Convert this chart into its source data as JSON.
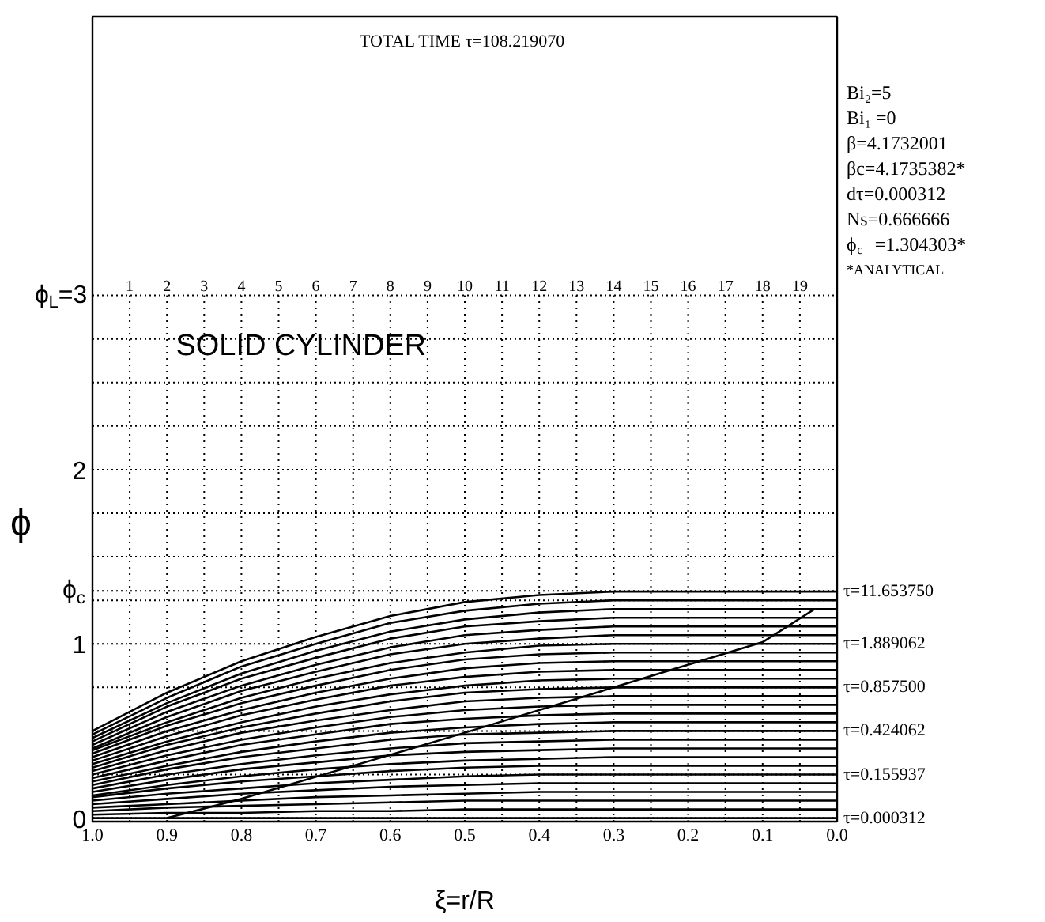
{
  "chart_data": {
    "type": "line",
    "title": "TOTAL TIME  τ=108.219070",
    "subtitle": "SOLID CYLINDER",
    "xlabel": "ξ=r/R",
    "ylabel": "ϕ",
    "x": [
      1.0,
      0.9,
      0.8,
      0.7,
      0.6,
      0.5,
      0.4,
      0.3,
      0.2,
      0.0
    ],
    "xlim": [
      1.0,
      0.0
    ],
    "ylim": [
      -0.02,
      4.6
    ],
    "xticks": [
      {
        "value": 1.0,
        "label": "1.0"
      },
      {
        "value": 0.95,
        "label": null
      },
      {
        "value": 0.9,
        "label": "0.9"
      },
      {
        "value": 0.85,
        "label": null
      },
      {
        "value": 0.8,
        "label": "0.8"
      },
      {
        "value": 0.75,
        "label": null
      },
      {
        "value": 0.7,
        "label": "0.7"
      },
      {
        "value": 0.65,
        "label": null
      },
      {
        "value": 0.6,
        "label": "0.6"
      },
      {
        "value": 0.55,
        "label": null
      },
      {
        "value": 0.5,
        "label": "0.5"
      },
      {
        "value": 0.45,
        "label": null
      },
      {
        "value": 0.4,
        "label": "0.4"
      },
      {
        "value": 0.35,
        "label": null
      },
      {
        "value": 0.3,
        "label": "0.3"
      },
      {
        "value": 0.25,
        "label": null
      },
      {
        "value": 0.2,
        "label": "0.2"
      },
      {
        "value": 0.15,
        "label": null
      },
      {
        "value": 0.1,
        "label": "0.1"
      },
      {
        "value": 0.05,
        "label": null
      },
      {
        "value": 0.0,
        "label": "0.0"
      }
    ],
    "yticks": [
      0,
      {
        "value": 0.25,
        "label": null
      },
      {
        "value": 0.5,
        "label": null
      },
      {
        "value": 0.75,
        "label": null
      },
      1,
      {
        "value": 1.25,
        "label": null
      },
      {
        "value": 1.304303,
        "label": "ϕ$_{c}$"
      },
      {
        "value": 1.5,
        "label": null
      },
      {
        "value": 1.75,
        "label": null
      },
      2,
      {
        "value": 2.25,
        "label": null
      },
      {
        "value": 2.5,
        "label": null
      },
      {
        "value": 2.75,
        "label": null
      },
      {
        "value": 3,
        "label": "ϕ$_{L}$=3"
      }
    ],
    "grid": true,
    "line_style": "solid",
    "marker": "none",
    "series": [
      {
        "color": "#000000",
        "name": "τ=0.000312",
        "values": [
          0,
          0,
          0,
          0,
          0,
          0,
          0,
          0,
          0,
          0
        ]
      },
      {
        "color": "#000000",
        "values": [
          0.02,
          0.03,
          0.03,
          0.04,
          0.04,
          0.05,
          0.05,
          0.05,
          0.05,
          0.05
        ]
      },
      {
        "color": "#000000",
        "values": [
          0.04,
          0.06,
          0.07,
          0.08,
          0.09,
          0.1,
          0.1,
          0.1,
          0.1,
          0.1
        ]
      },
      {
        "color": "#000000",
        "values": [
          0.06,
          0.08,
          0.1,
          0.12,
          0.13,
          0.14,
          0.15,
          0.15,
          0.15,
          0.15
        ]
      },
      {
        "color": "#000000",
        "values": [
          0.08,
          0.11,
          0.14,
          0.16,
          0.18,
          0.19,
          0.2,
          0.2,
          0.2,
          0.2
        ]
      },
      {
        "color": "#000000",
        "name": "τ=0.155937",
        "values": [
          0.1,
          0.14,
          0.17,
          0.2,
          0.22,
          0.24,
          0.25,
          0.25,
          0.25,
          0.25
        ]
      },
      {
        "color": "#000000",
        "values": [
          0.12,
          0.17,
          0.21,
          0.24,
          0.27,
          0.29,
          0.3,
          0.3,
          0.3,
          0.3
        ]
      },
      {
        "color": "#000000",
        "values": [
          0.13,
          0.19,
          0.24,
          0.28,
          0.31,
          0.33,
          0.34,
          0.35,
          0.35,
          0.35
        ]
      },
      {
        "color": "#000000",
        "values": [
          0.15,
          0.22,
          0.28,
          0.32,
          0.36,
          0.38,
          0.39,
          0.4,
          0.4,
          0.4
        ]
      },
      {
        "color": "#000000",
        "values": [
          0.17,
          0.25,
          0.31,
          0.36,
          0.4,
          0.43,
          0.44,
          0.45,
          0.45,
          0.45
        ]
      },
      {
        "color": "#000000",
        "name": "τ=0.424062",
        "values": [
          0.19,
          0.28,
          0.35,
          0.4,
          0.45,
          0.48,
          0.49,
          0.5,
          0.5,
          0.5
        ]
      },
      {
        "color": "#000000",
        "values": [
          0.21,
          0.3,
          0.38,
          0.44,
          0.49,
          0.52,
          0.54,
          0.55,
          0.55,
          0.55
        ]
      },
      {
        "color": "#000000",
        "values": [
          0.23,
          0.33,
          0.42,
          0.48,
          0.54,
          0.57,
          0.59,
          0.6,
          0.6,
          0.6
        ]
      },
      {
        "color": "#000000",
        "values": [
          0.25,
          0.36,
          0.45,
          0.52,
          0.58,
          0.62,
          0.64,
          0.65,
          0.65,
          0.65
        ]
      },
      {
        "color": "#000000",
        "values": [
          0.27,
          0.39,
          0.49,
          0.56,
          0.62,
          0.67,
          0.69,
          0.7,
          0.7,
          0.7
        ]
      },
      {
        "color": "#000000",
        "name": "τ=0.857500",
        "values": [
          0.29,
          0.42,
          0.52,
          0.6,
          0.67,
          0.72,
          0.74,
          0.75,
          0.75,
          0.75
        ]
      },
      {
        "color": "#000000",
        "values": [
          0.31,
          0.44,
          0.55,
          0.64,
          0.71,
          0.76,
          0.79,
          0.8,
          0.8,
          0.8
        ]
      },
      {
        "color": "#000000",
        "values": [
          0.33,
          0.47,
          0.59,
          0.68,
          0.76,
          0.81,
          0.84,
          0.85,
          0.85,
          0.85
        ]
      },
      {
        "color": "#000000",
        "values": [
          0.35,
          0.5,
          0.62,
          0.72,
          0.8,
          0.86,
          0.89,
          0.9,
          0.9,
          0.9
        ]
      },
      {
        "color": "#000000",
        "values": [
          0.37,
          0.53,
          0.66,
          0.76,
          0.85,
          0.91,
          0.94,
          0.95,
          0.95,
          0.95
        ]
      },
      {
        "color": "#000000",
        "name": "τ=1.889062",
        "values": [
          0.39,
          0.55,
          0.69,
          0.8,
          0.89,
          0.95,
          0.99,
          1.0,
          1.0,
          1.0
        ]
      },
      {
        "color": "#000000",
        "values": [
          0.4,
          0.58,
          0.73,
          0.84,
          0.94,
          1.0,
          1.03,
          1.05,
          1.05,
          1.05
        ]
      },
      {
        "color": "#000000",
        "values": [
          0.42,
          0.61,
          0.76,
          0.88,
          0.98,
          1.05,
          1.08,
          1.1,
          1.1,
          1.1
        ]
      },
      {
        "color": "#000000",
        "values": [
          0.44,
          0.64,
          0.8,
          0.92,
          1.03,
          1.1,
          1.13,
          1.15,
          1.15,
          1.15
        ]
      },
      {
        "color": "#000000",
        "values": [
          0.46,
          0.66,
          0.83,
          0.96,
          1.07,
          1.14,
          1.18,
          1.2,
          1.2,
          1.2
        ]
      },
      {
        "color": "#000000",
        "values": [
          0.48,
          0.69,
          0.87,
          1.0,
          1.12,
          1.19,
          1.23,
          1.25,
          1.25,
          1.25
        ]
      },
      {
        "color": "#000000",
        "name": "τ=11.653750",
        "values": [
          0.5,
          0.72,
          0.9,
          1.04,
          1.16,
          1.24,
          1.28,
          1.3,
          1.3,
          1.3
        ]
      },
      {
        "color": "#000000",
        "x": [
          0.9,
          0.8,
          0.5,
          0.3,
          0.1,
          0.03
        ],
        "values": [
          0.0,
          0.11,
          0.49,
          0.75,
          1.01,
          1.2
        ]
      }
    ],
    "annotations": [
      "Bi₂=5",
      "Bi₁ =0",
      "β=4.1732001",
      "βc=4.1735382*",
      "dτ=0.000312",
      "Ns=0.666666",
      "ϕ$_{c}$ =1.304303*",
      "*ANALYTICAL",
      "1",
      "2",
      "3",
      "4",
      "5",
      "6",
      "7",
      "8",
      "9",
      "10",
      "11",
      "12",
      "13",
      "14",
      "15",
      "16",
      "17",
      "18",
      "19"
    ]
  }
}
